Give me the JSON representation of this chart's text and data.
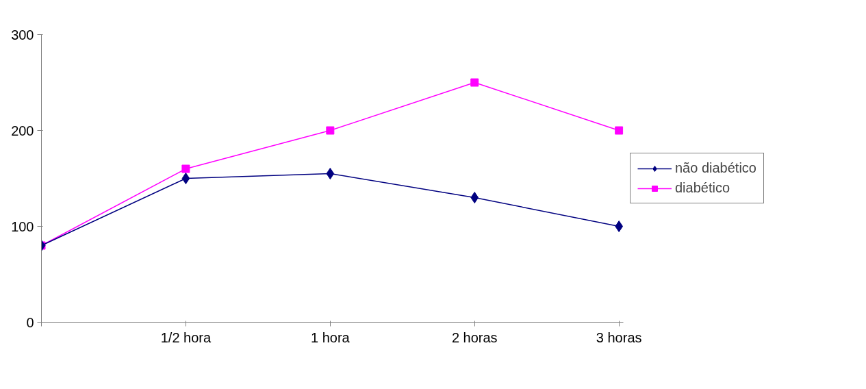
{
  "chart_data": {
    "type": "line",
    "categories": [
      null,
      "1/2 hora",
      "1 hora",
      "2 horas",
      "3 horas"
    ],
    "series": [
      {
        "name": "não diabético",
        "color": "#000080",
        "marker": "diamond",
        "values": [
          80,
          150,
          155,
          130,
          100
        ]
      },
      {
        "name": "diabético",
        "color": "#ff00ff",
        "marker": "square",
        "values": [
          80,
          160,
          200,
          250,
          200
        ]
      }
    ],
    "ylim": [
      0,
      300
    ],
    "yticks": [
      0,
      100,
      200,
      300
    ],
    "grid": false,
    "legend": "right",
    "line_style": "solid"
  }
}
